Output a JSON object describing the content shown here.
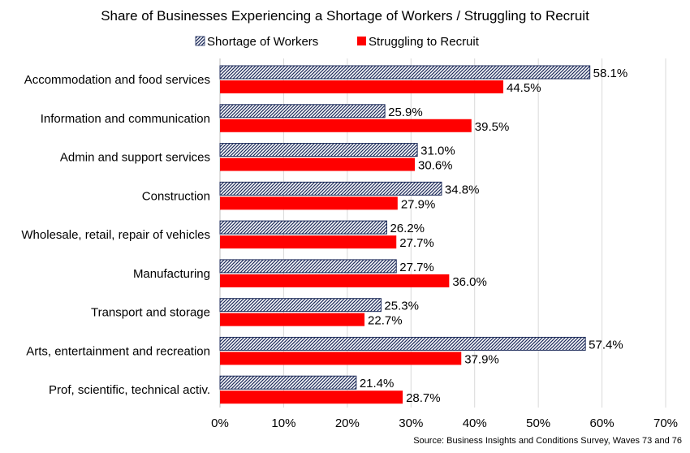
{
  "chart_data": {
    "type": "bar",
    "orientation": "horizontal",
    "title": "Share of Businesses Experiencing a Shortage of Workers / Struggling to Recruit",
    "source": "Source: Business Insights and Conditions Survey, Waves 73 and 76",
    "categories": [
      "Accommodation and food services",
      "Information and communication",
      "Admin and support services",
      "Construction",
      "Wholesale, retail, repair of vehicles",
      "Manufacturing",
      "Transport and storage",
      "Arts, entertainment and recreation",
      "Prof, scientific, technical activ."
    ],
    "series": [
      {
        "name": "Shortage of Workers",
        "color": "#1f2d5c",
        "pattern": "diagonal-hatch",
        "values": [
          58.1,
          25.9,
          31.0,
          34.8,
          26.2,
          27.7,
          25.3,
          57.4,
          21.4
        ],
        "labels": [
          "58.1%",
          "25.9%",
          "31.0%",
          "34.8%",
          "26.2%",
          "27.7%",
          "25.3%",
          "57.4%",
          "21.4%"
        ]
      },
      {
        "name": "Struggling to Recruit",
        "color": "#ff0000",
        "pattern": "solid",
        "values": [
          44.5,
          39.5,
          30.6,
          27.9,
          27.7,
          36.0,
          22.7,
          37.9,
          28.7
        ],
        "labels": [
          "44.5%",
          "39.5%",
          "30.6%",
          "27.9%",
          "27.7%",
          "36.0%",
          "22.7%",
          "37.9%",
          "28.7%"
        ]
      }
    ],
    "xlim": [
      0,
      70
    ],
    "xticks": [
      0,
      10,
      20,
      30,
      40,
      50,
      60,
      70
    ],
    "xtick_labels": [
      "0%",
      "10%",
      "20%",
      "30%",
      "40%",
      "50%",
      "60%",
      "70%"
    ],
    "grid": "vertical",
    "legend_position": "top"
  }
}
